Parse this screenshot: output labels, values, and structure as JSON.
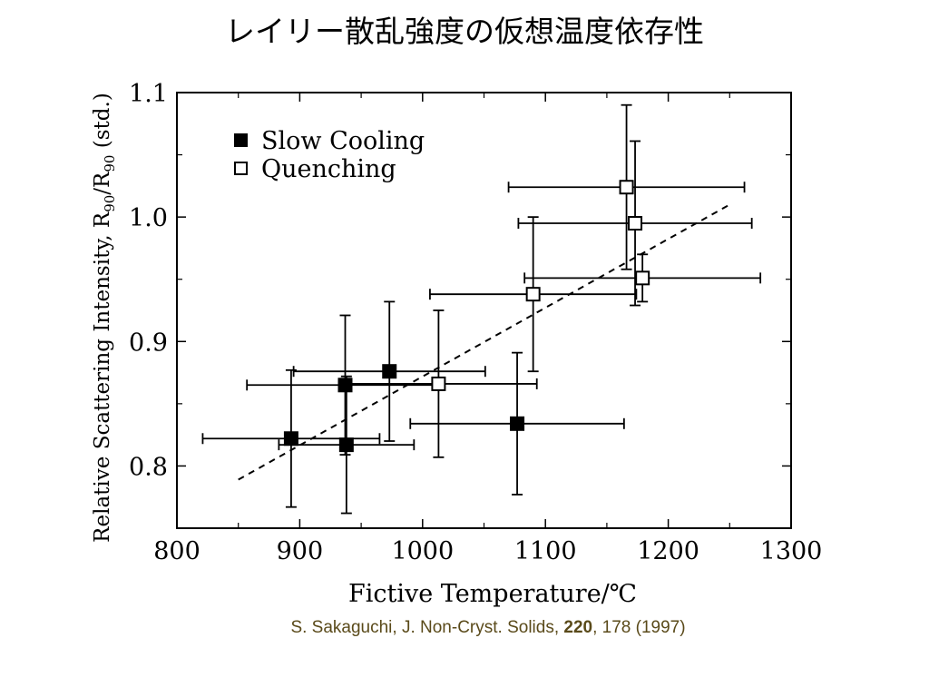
{
  "slide": {
    "title": "レイリー散乱強度の仮想温度依存性"
  },
  "citation": {
    "authors_journal": "S. Sakaguchi, J. Non-Cryst. Solids, ",
    "volume": "220",
    "pages_year": ", 178 (1997)"
  },
  "chart_data": {
    "type": "scatter",
    "title": "",
    "xlabel": "Fictive Temperature/℃",
    "ylabel": "Relative Scattering Intensity, R90/R90 (std.)",
    "ylabel_parts": {
      "prefix": "Relative Scattering Intensity, R",
      "sub1": "90",
      "mid": "/R",
      "sub2": "90",
      "suffix": " (std.)"
    },
    "xlim": [
      800,
      1300
    ],
    "ylim": [
      0.75,
      1.1
    ],
    "xticks": [
      "800",
      "900",
      "1000",
      "1100",
      "1200",
      "1300"
    ],
    "yticks": [
      "0.8",
      "0.9",
      "1.0",
      "1.1"
    ],
    "legend_position": "top-left",
    "grid": false,
    "colors": {
      "axis": "#000000",
      "marker_fill_slow": "#000000",
      "marker_fill_quench": "#ffffff"
    },
    "series": [
      {
        "name": "Slow Cooling",
        "marker": "filled-square",
        "points": [
          {
            "x": 893,
            "y": 0.822,
            "xerr": 72,
            "yerr": 0.055
          },
          {
            "x": 937,
            "y": 0.865,
            "xerr": 80,
            "yerr": 0.056
          },
          {
            "x": 938,
            "y": 0.817,
            "xerr": 55,
            "yerr": 0.055
          },
          {
            "x": 973,
            "y": 0.876,
            "xerr": 78,
            "yerr": 0.056
          },
          {
            "x": 1077,
            "y": 0.834,
            "xerr": 87,
            "yerr": 0.057
          }
        ]
      },
      {
        "name": "Quenching",
        "marker": "open-square",
        "points": [
          {
            "x": 1013,
            "y": 0.866,
            "xerr": 80,
            "yerr": 0.059
          },
          {
            "x": 1090,
            "y": 0.938,
            "xerr": 84,
            "yerr": 0.062
          },
          {
            "x": 1166,
            "y": 1.024,
            "xerr": 96,
            "yerr": 0.066
          },
          {
            "x": 1173,
            "y": 0.995,
            "xerr": 95,
            "yerr": 0.066
          },
          {
            "x": 1179,
            "y": 0.951,
            "xerr": 96,
            "yerr": 0.019
          }
        ]
      }
    ],
    "trend_line": {
      "style": "dashed",
      "x": [
        850,
        1250
      ],
      "y": [
        0.789,
        1.01
      ]
    }
  }
}
